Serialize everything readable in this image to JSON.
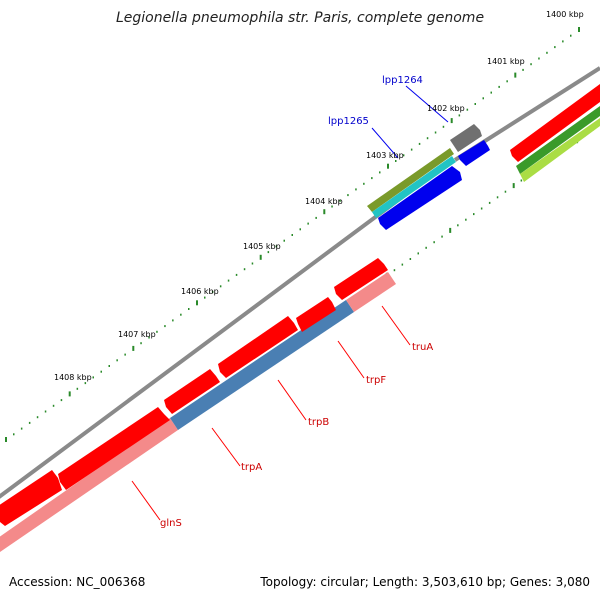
{
  "title": "Legionella pneumophila str. Paris, complete genome",
  "accession": "Accession: NC_006368",
  "summary": "Topology: circular; Length: 3,503,610 bp; Genes: 3,080",
  "kbp_labels": [
    "1400 kbp",
    "1401 kbp",
    "1402 kbp",
    "1403 kbp",
    "1404 kbp",
    "1405 kbp",
    "1406 kbp",
    "1407 kbp",
    "1408 kbp"
  ],
  "colors": {
    "gene": "#ff0000",
    "gene_light": "#f48a8a",
    "cds_blue": "#4a7fb3",
    "cds_bright_blue": "#0000ee",
    "cyan": "#22c4c4",
    "olive": "#7a9a2a",
    "gray": "#707070",
    "green": "#3a9a2a",
    "lime": "#aadd44",
    "dark_green": "#2a7a1a",
    "tick": "#2a8a2a",
    "backbone": "#8a8a8a",
    "label_blue": "#0000cc",
    "label_red": "#cc0000"
  },
  "gene_labels": {
    "lpp1264": "lpp1264",
    "lpp1265": "lpp1265",
    "truA": "truA",
    "trpF": "trpF",
    "trpB": "trpB",
    "trpA": "trpA",
    "glnS": "glnS"
  }
}
